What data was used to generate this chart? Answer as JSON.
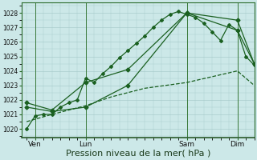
{
  "bg_color": "#cce8e8",
  "grid_color": "#aacccc",
  "line_color": "#1a6020",
  "xlabel": "Pression niveau de la mer( hPa )",
  "xlabel_fontsize": 8,
  "ytick_vals": [
    1020,
    1021,
    1022,
    1023,
    1024,
    1025,
    1026,
    1027,
    1028
  ],
  "ylim": [
    1019.4,
    1028.7
  ],
  "xlim": [
    -0.3,
    13.5
  ],
  "xtick_positions": [
    0.5,
    3.5,
    9.5,
    12.5
  ],
  "xtick_labels": [
    "Ven",
    "Lun",
    "Sam",
    "Dim"
  ],
  "vline_positions": [
    0.5,
    3.5,
    9.5,
    12.5
  ],
  "s1x": [
    0,
    0.5,
    1.0,
    1.5,
    2.0,
    2.5,
    3.0,
    3.5,
    4.0,
    4.5,
    5.0,
    5.5,
    6.0,
    6.5,
    7.0,
    7.5,
    8.0,
    8.5,
    9.0,
    9.5,
    10.0,
    10.5,
    11.0,
    11.5,
    12.0,
    12.5,
    13.0,
    13.5
  ],
  "s1y": [
    1020.0,
    1020.9,
    1021.0,
    1021.0,
    1021.5,
    1021.8,
    1022.0,
    1023.5,
    1023.2,
    1023.8,
    1024.3,
    1024.9,
    1025.4,
    1025.9,
    1026.4,
    1027.0,
    1027.5,
    1027.9,
    1028.1,
    1027.9,
    1027.7,
    1027.3,
    1026.7,
    1026.1,
    1027.2,
    1026.8,
    1025.0,
    1024.4
  ],
  "s2x": [
    0,
    1.5,
    3.5,
    5.0,
    7.0,
    9.5,
    11.0,
    12.5,
    13.5
  ],
  "s2y": [
    1020.5,
    1021.0,
    1021.6,
    1022.2,
    1022.8,
    1023.2,
    1023.6,
    1024.0,
    1023.0
  ],
  "s3x": [
    0,
    1.5,
    3.5,
    6.0,
    9.5,
    12.5,
    13.5
  ],
  "s3y": [
    1021.5,
    1021.2,
    1021.5,
    1023.0,
    1028.0,
    1027.5,
    1024.5
  ],
  "s4x": [
    0,
    1.5,
    3.5,
    6.0,
    9.5,
    12.5,
    13.5
  ],
  "s4y": [
    1021.8,
    1021.3,
    1023.2,
    1024.1,
    1028.0,
    1026.8,
    1024.5
  ]
}
